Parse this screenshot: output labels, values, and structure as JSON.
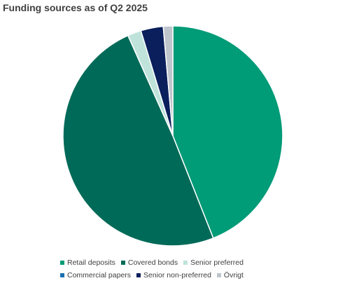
{
  "chart_data": {
    "type": "pie",
    "title": "Funding sources as of Q2 2025",
    "slices": [
      {
        "label": "Retail deposits",
        "value": 44.0,
        "color": "#009b77"
      },
      {
        "label": "Covered bonds",
        "value": 49.3,
        "color": "#006a58"
      },
      {
        "label": "Senior preferred",
        "value": 2.0,
        "color": "#bfe3da"
      },
      {
        "label": "Commercial papers",
        "value": 0.0,
        "color": "#1a6fb0"
      },
      {
        "label": "Senior non-preferred",
        "value": 3.3,
        "color": "#0a1f5c"
      },
      {
        "label": "Övrigt",
        "value": 1.4,
        "color": "#bfc5cc"
      }
    ],
    "start_angle_deg": 0,
    "direction": "clockwise",
    "legend_position": "bottom"
  }
}
